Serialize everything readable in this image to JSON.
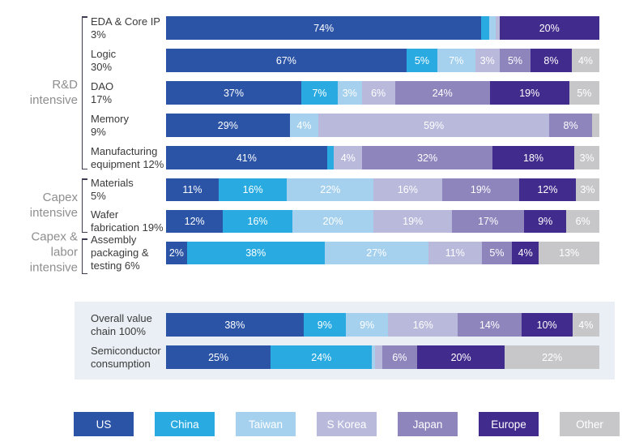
{
  "chart_data": {
    "type": "bar",
    "variant": "horizontal-stacked-100-percent",
    "unit": "%",
    "title": "",
    "legend_position": "bottom",
    "regions": [
      {
        "id": "us",
        "label": "US",
        "color": "#2B54A6"
      },
      {
        "id": "china",
        "label": "China",
        "color": "#29ABE2"
      },
      {
        "id": "taiwan",
        "label": "Taiwan",
        "color": "#A5D1EE"
      },
      {
        "id": "skorea",
        "label": "S Korea",
        "color": "#B9B9DC"
      },
      {
        "id": "japan",
        "label": "Japan",
        "color": "#8E85BD"
      },
      {
        "id": "europe",
        "label": "Europe",
        "color": "#412B8C"
      },
      {
        "id": "other",
        "label": "Other",
        "color": "#C7C7CA"
      }
    ],
    "groups": [
      {
        "id": "rd",
        "label": "R&D\nintensive"
      },
      {
        "id": "capex",
        "label": "Capex\nintensive"
      },
      {
        "id": "capexlabor",
        "label": "Capex &\nlabor intensive"
      }
    ],
    "rows": [
      {
        "id": "eda",
        "label": "EDA & Core IP\n3%",
        "section": "main",
        "segments": [
          {
            "r": "us",
            "v": 74,
            "t": "74%"
          },
          {
            "r": "china",
            "v": 2,
            "t": ""
          },
          {
            "r": "taiwan",
            "v": 1.5,
            "t": ""
          },
          {
            "r": "skorea",
            "v": 1,
            "t": ""
          },
          {
            "r": "europe",
            "v": 20,
            "t": "20%"
          }
        ]
      },
      {
        "id": "logic",
        "label": "Logic\n30%",
        "section": "main",
        "segments": [
          {
            "r": "us",
            "v": 67,
            "t": "67%"
          },
          {
            "r": "china",
            "v": 5,
            "t": "5%"
          },
          {
            "r": "taiwan",
            "v": 7,
            "t": "7%"
          },
          {
            "r": "skorea",
            "v": 3,
            "t": "3%"
          },
          {
            "r": "japan",
            "v": 5,
            "t": "5%"
          },
          {
            "r": "europe",
            "v": 8,
            "t": "8%"
          },
          {
            "r": "other",
            "v": 4,
            "t": "4%"
          }
        ]
      },
      {
        "id": "dao",
        "label": "DAO\n17%",
        "section": "main",
        "segments": [
          {
            "r": "us",
            "v": 37,
            "t": "37%"
          },
          {
            "r": "china",
            "v": 7,
            "t": "7%"
          },
          {
            "r": "taiwan",
            "v": 3,
            "t": "3%"
          },
          {
            "r": "skorea",
            "v": 6,
            "t": "6%"
          },
          {
            "r": "japan",
            "v": 24,
            "t": "24%"
          },
          {
            "r": "europe",
            "v": 19,
            "t": "19%"
          },
          {
            "r": "other",
            "v": 5,
            "t": "5%"
          }
        ]
      },
      {
        "id": "memory",
        "label": "Memory\n9%",
        "section": "main",
        "segments": [
          {
            "r": "us",
            "v": 29,
            "t": "29%"
          },
          {
            "r": "taiwan",
            "v": 4,
            "t": "4%"
          },
          {
            "r": "skorea",
            "v": 59,
            "t": "59%"
          },
          {
            "r": "japan",
            "v": 8,
            "t": "8%"
          },
          {
            "r": "other",
            "v": 2,
            "t": ""
          }
        ]
      },
      {
        "id": "mfg-equipment",
        "label": "Manufacturing\nequipment 12%",
        "section": "main",
        "segments": [
          {
            "r": "us",
            "v": 41,
            "t": "41%"
          },
          {
            "r": "china",
            "v": 2,
            "t": ""
          },
          {
            "r": "skorea",
            "v": 4,
            "t": "4%"
          },
          {
            "r": "japan",
            "v": 32,
            "t": "32%"
          },
          {
            "r": "europe",
            "v": 18,
            "t": "18%"
          },
          {
            "r": "other",
            "v": 3,
            "t": "3%"
          }
        ]
      },
      {
        "id": "materials",
        "label": "Materials\n5%",
        "section": "main",
        "segments": [
          {
            "r": "us",
            "v": 11,
            "t": "11%"
          },
          {
            "r": "china",
            "v": 16,
            "t": "16%"
          },
          {
            "r": "taiwan",
            "v": 22,
            "t": "22%"
          },
          {
            "r": "skorea",
            "v": 16,
            "t": "16%"
          },
          {
            "r": "japan",
            "v": 19,
            "t": "19%"
          },
          {
            "r": "europe",
            "v": 12,
            "t": "12%"
          },
          {
            "r": "other",
            "v": 3,
            "t": "3%"
          }
        ]
      },
      {
        "id": "wafer-fabrication",
        "label": "Wafer\nfabrication 19%",
        "section": "main",
        "segments": [
          {
            "r": "us",
            "v": 12,
            "t": "12%"
          },
          {
            "r": "china",
            "v": 16,
            "t": "16%"
          },
          {
            "r": "taiwan",
            "v": 20,
            "t": "20%"
          },
          {
            "r": "skorea",
            "v": 19,
            "t": "19%"
          },
          {
            "r": "japan",
            "v": 17,
            "t": "17%"
          },
          {
            "r": "europe",
            "v": 9,
            "t": "9%"
          },
          {
            "r": "other",
            "v": 6,
            "t": "6%"
          }
        ]
      },
      {
        "id": "assembly",
        "label": "Assembly\npackaging &\ntesting 6%",
        "section": "main",
        "segments": [
          {
            "r": "us",
            "v": 2,
            "t": "2%"
          },
          {
            "r": "china",
            "v": 38,
            "t": "38%"
          },
          {
            "r": "taiwan",
            "v": 27,
            "t": "27%"
          },
          {
            "r": "skorea",
            "v": 11,
            "t": "11%"
          },
          {
            "r": "japan",
            "v": 5,
            "t": "5%"
          },
          {
            "r": "europe",
            "v": 4,
            "t": "4%"
          },
          {
            "r": "other",
            "v": 13,
            "t": "13%"
          }
        ]
      },
      {
        "id": "overall-value-chain",
        "label": "Overall value\nchain 100%",
        "section": "panel",
        "segments": [
          {
            "r": "us",
            "v": 38,
            "t": "38%"
          },
          {
            "r": "china",
            "v": 9,
            "t": "9%"
          },
          {
            "r": "taiwan",
            "v": 9,
            "t": "9%"
          },
          {
            "r": "skorea",
            "v": 16,
            "t": "16%"
          },
          {
            "r": "japan",
            "v": 14,
            "t": "14%"
          },
          {
            "r": "europe",
            "v": 10,
            "t": "10%"
          },
          {
            "r": "other",
            "v": 4,
            "t": "4%"
          }
        ]
      },
      {
        "id": "semiconductor-consumption",
        "label": "Semiconductor\nconsumption",
        "section": "panel",
        "segments": [
          {
            "r": "us",
            "v": 25,
            "t": "25%"
          },
          {
            "r": "china",
            "v": 24,
            "t": "24%"
          },
          {
            "r": "taiwan",
            "v": 1,
            "t": ""
          },
          {
            "r": "skorea",
            "v": 2,
            "t": ""
          },
          {
            "r": "japan",
            "v": 6,
            "t": "6%"
          },
          {
            "r": "europe",
            "v": 20,
            "t": "20%"
          },
          {
            "r": "other",
            "v": 22,
            "t": "22%"
          }
        ]
      }
    ]
  },
  "style": {
    "panel_background": "#E9EFF4",
    "row_label_color": "#3A3A3A",
    "group_label_color": "#8E8E8E",
    "bracket_color": "#3C3C52",
    "bar_label_color": "#FFFFFF"
  }
}
